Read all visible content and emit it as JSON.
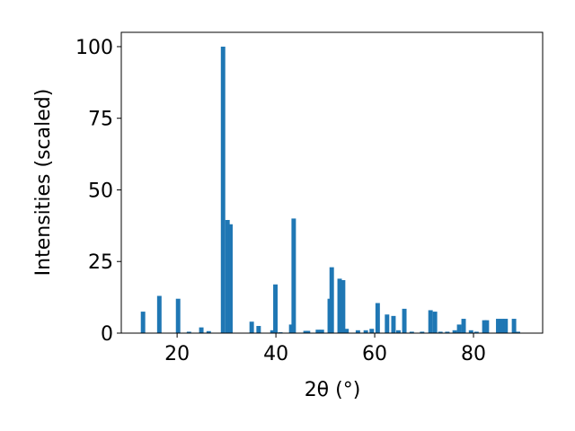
{
  "chart_data": {
    "type": "bar",
    "xlabel": "2θ (°)",
    "ylabel": "Intensities (scaled)",
    "x": [
      13.1,
      16.4,
      20.2,
      22.4,
      24.9,
      26.4,
      29.3,
      30.2,
      30.8,
      35.1,
      36.5,
      39.3,
      39.9,
      40.9,
      43.1,
      43.6,
      46.0,
      46.5,
      48.5,
      49.3,
      50.9,
      51.3,
      52.9,
      53.6,
      54.3,
      56.6,
      58.2,
      59.4,
      60.6,
      62.5,
      63.8,
      64.8,
      66.0,
      67.5,
      69.6,
      71.3,
      72.2,
      73.3,
      74.7,
      76.2,
      77.1,
      78.0,
      79.5,
      80.6,
      82.2,
      82.7,
      85.0,
      85.8,
      86.5,
      88.2,
      89.0
    ],
    "values": [
      7.5,
      13,
      12,
      0.5,
      2,
      0.7,
      100,
      39.5,
      38,
      4,
      2.5,
      1,
      17,
      0.3,
      3,
      40,
      0.8,
      0.8,
      1.2,
      1.2,
      12,
      23,
      19,
      18.5,
      1.5,
      1,
      1,
      1.5,
      10.5,
      6.5,
      6,
      1,
      8.5,
      0.5,
      0.5,
      8,
      7.5,
      0.5,
      0.5,
      1,
      3,
      5,
      1,
      0.5,
      4.5,
      4.5,
      5,
      5,
      5,
      5,
      0.5
    ],
    "color": "#1f77b4",
    "xlim": [
      8.7,
      94
    ],
    "xticks": [
      20,
      40,
      60,
      80
    ],
    "ylim": [
      0,
      105
    ],
    "yticks": [
      0,
      25,
      50,
      75,
      100
    ]
  }
}
